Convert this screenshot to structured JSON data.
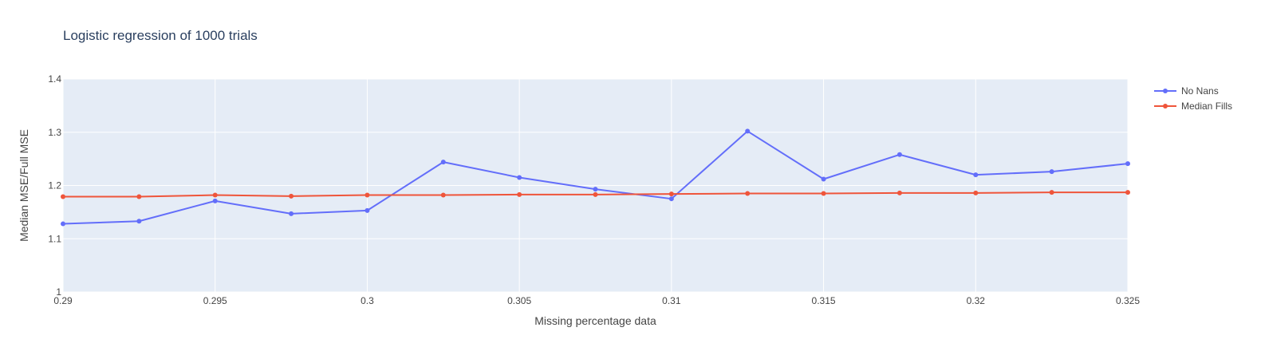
{
  "chart_data": {
    "type": "line",
    "title": "Logistic regression of 1000 trials",
    "xlabel": "Missing percentage data",
    "ylabel": "Median MSE/Full MSE",
    "xlim": [
      0.29,
      0.325
    ],
    "ylim": [
      1.0,
      1.4
    ],
    "x_ticks": [
      0.29,
      0.295,
      0.3,
      0.305,
      0.31,
      0.315,
      0.32,
      0.325
    ],
    "x_tick_labels": [
      "0.29",
      "0.295",
      "0.3",
      "0.305",
      "0.31",
      "0.315",
      "0.32",
      "0.325"
    ],
    "y_ticks": [
      1.0,
      1.1,
      1.2,
      1.3,
      1.4
    ],
    "y_tick_labels": [
      "1",
      "1.1",
      "1.2",
      "1.3",
      "1.4"
    ],
    "grid": true,
    "legend_position": "top-right",
    "x": [
      0.29,
      0.2925,
      0.295,
      0.2975,
      0.3,
      0.3025,
      0.305,
      0.3075,
      0.31,
      0.3125,
      0.315,
      0.3175,
      0.32,
      0.3225,
      0.325
    ],
    "series": [
      {
        "name": "No Nans",
        "color": "#636efa",
        "values": [
          1.128,
          1.133,
          1.171,
          1.147,
          1.153,
          1.244,
          1.215,
          1.193,
          1.175,
          1.302,
          1.212,
          1.258,
          1.22,
          1.226,
          1.241
        ]
      },
      {
        "name": "Median Fills",
        "color": "#ef553b",
        "values": [
          1.179,
          1.179,
          1.182,
          1.18,
          1.182,
          1.182,
          1.183,
          1.183,
          1.184,
          1.185,
          1.185,
          1.186,
          1.186,
          1.187,
          1.187
        ]
      }
    ]
  },
  "colors": {
    "plot_background": "#e5ecf6",
    "grid": "#ffffff",
    "text": "#444444",
    "title": "#2a3f5f"
  }
}
